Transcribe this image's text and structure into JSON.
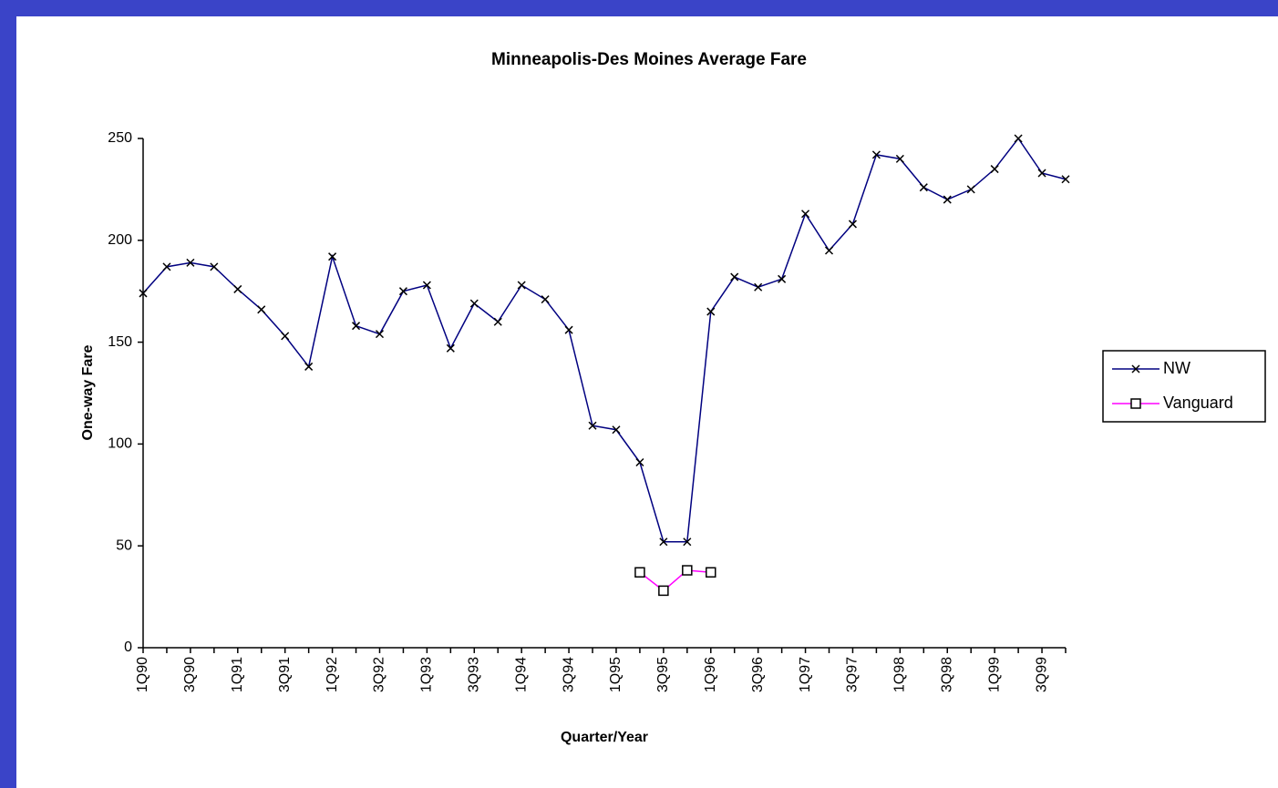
{
  "chart_data": {
    "type": "line",
    "title": "Minneapolis-Des Moines Average Fare",
    "x_label": "Quarter/Year",
    "y_label": "One-way Fare",
    "categories": [
      "1Q90",
      null,
      "3Q90",
      null,
      "1Q91",
      null,
      "3Q91",
      null,
      "1Q92",
      null,
      "3Q92",
      null,
      "1Q93",
      null,
      "3Q93",
      null,
      "1Q94",
      null,
      "3Q94",
      null,
      "1Q95",
      null,
      "3Q95",
      null,
      "1Q96",
      null,
      "3Q96",
      null,
      "1Q97",
      null,
      "3Q97",
      null,
      "1Q98",
      null,
      "3Q98",
      null,
      "1Q99",
      null,
      "3Q99",
      null
    ],
    "series": [
      {
        "name": "NW",
        "color": "#000080",
        "marker": "x",
        "values": [
          174,
          187,
          189,
          187,
          176,
          166,
          153,
          138,
          192,
          158,
          154,
          175,
          178,
          147,
          169,
          160,
          178,
          171,
          156,
          109,
          107,
          91,
          52,
          52,
          165,
          182,
          177,
          181,
          213,
          195,
          208,
          242,
          240,
          226,
          220,
          225,
          235,
          250,
          233,
          230
        ]
      },
      {
        "name": "Vanguard",
        "color": "#ff00ff",
        "marker": "square",
        "values": [
          null,
          null,
          null,
          null,
          null,
          null,
          null,
          null,
          null,
          null,
          null,
          null,
          null,
          null,
          null,
          null,
          null,
          null,
          null,
          null,
          null,
          37,
          28,
          38,
          37,
          null,
          null,
          null,
          null,
          null,
          null,
          null,
          null,
          null,
          null,
          null,
          null,
          null,
          null,
          null
        ]
      }
    ],
    "ylim": [
      0,
      250
    ],
    "yticks": [
      0,
      50,
      100,
      150,
      200,
      250
    ],
    "grid": false,
    "legend": "right"
  }
}
